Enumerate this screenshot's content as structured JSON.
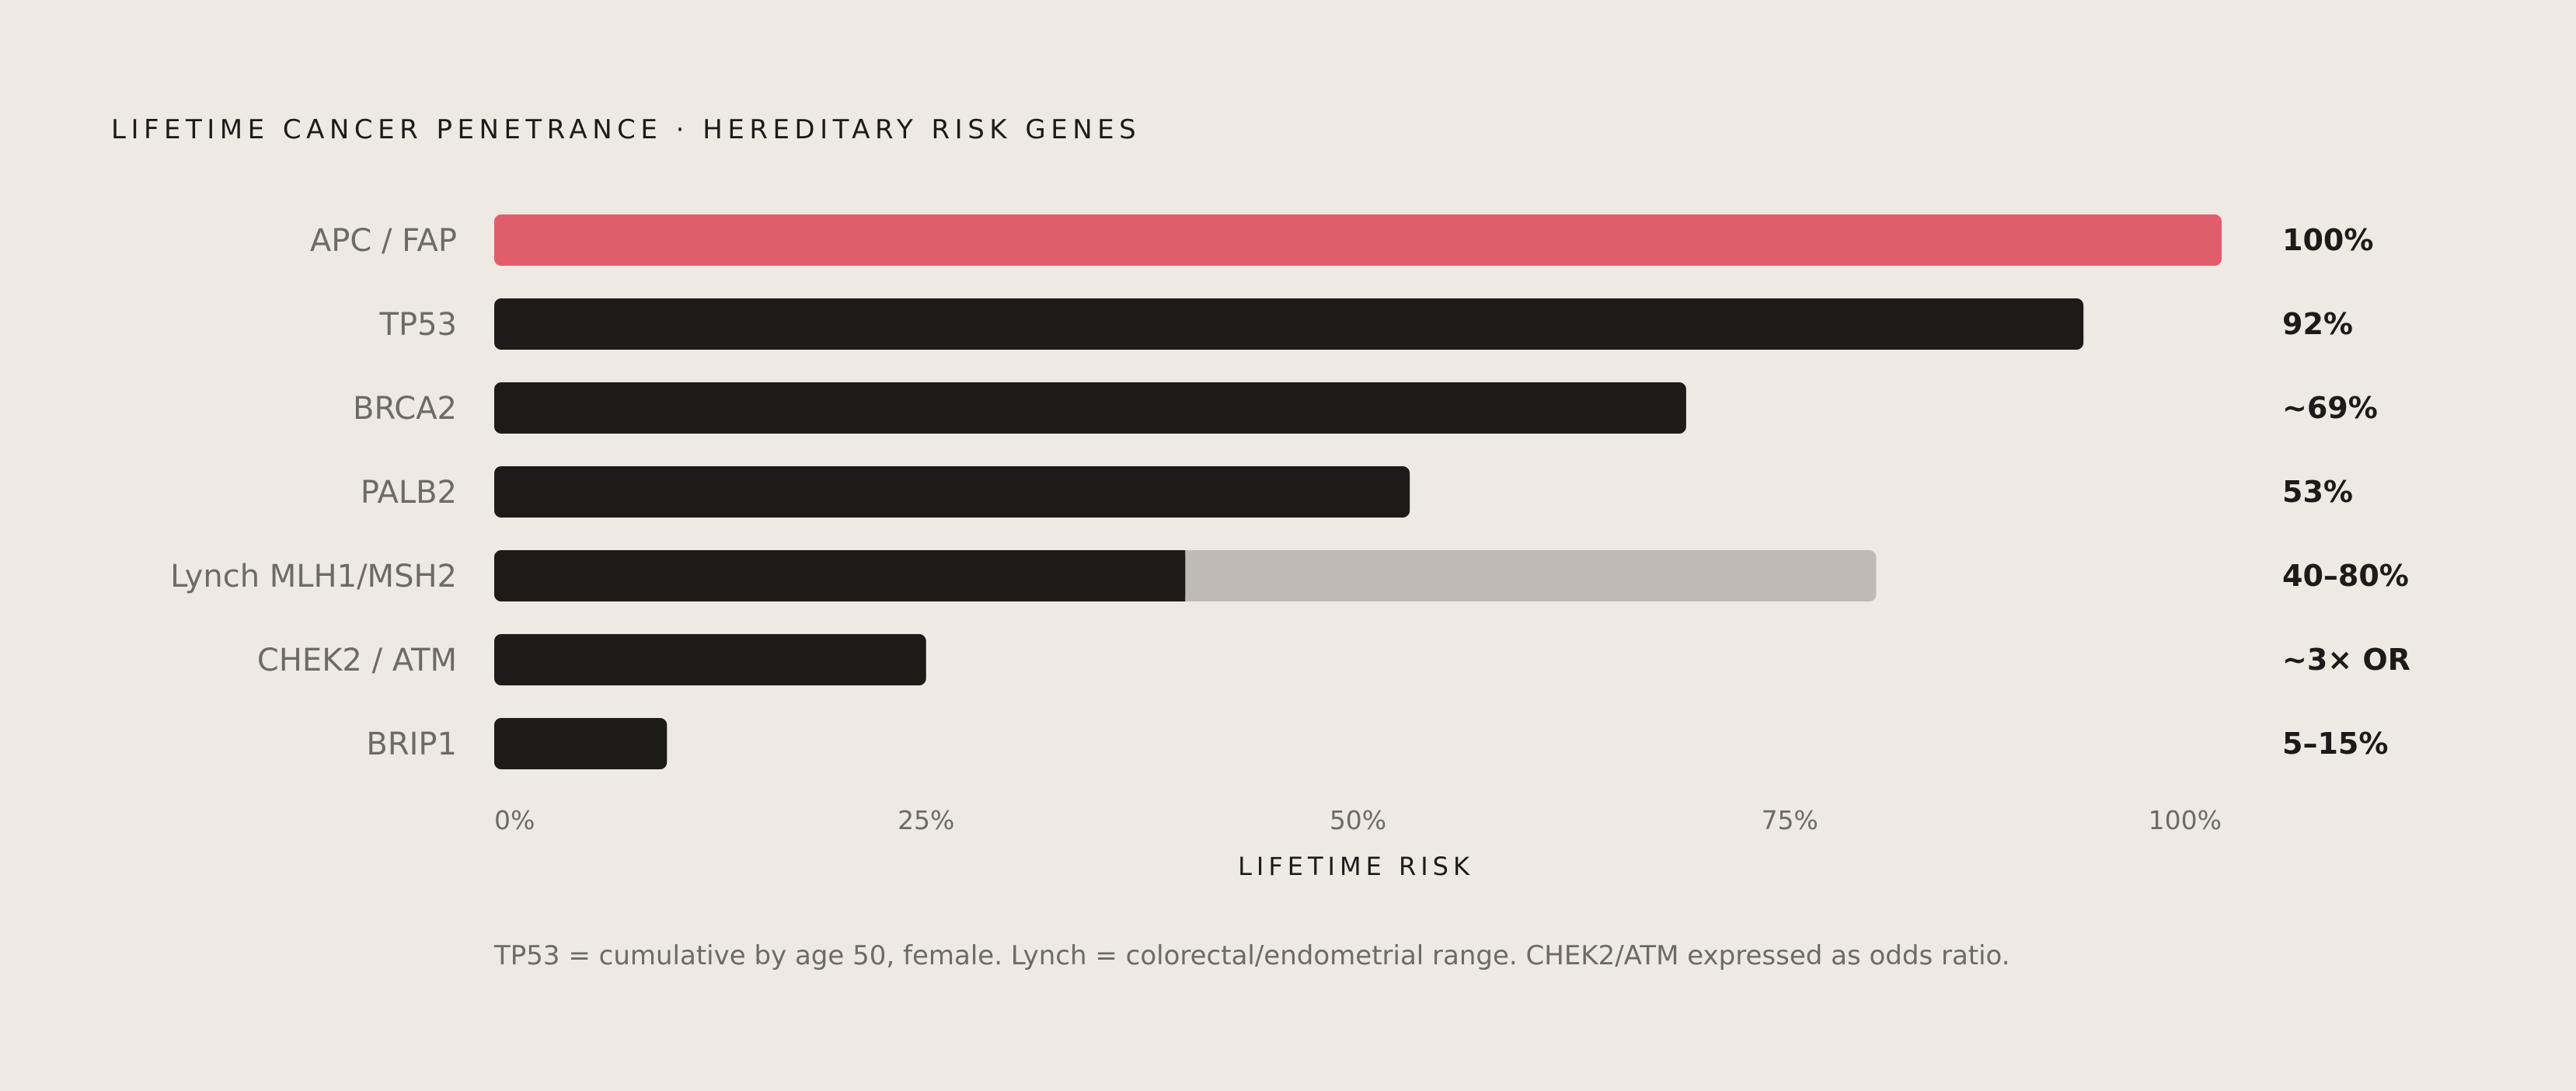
{
  "colors": {
    "background": "#EEE9E3",
    "highlight": "#E05D6B",
    "bar": "#1C1B19",
    "range": "#BFBAB3",
    "label": "#6E6A66"
  },
  "chart_data": {
    "type": "bar",
    "orientation": "horizontal",
    "title": "LIFETIME CANCER PENETRANCE · HEREDITARY RISK GENES",
    "xlabel": "LIFETIME RISK",
    "ylabel": "",
    "xlim": [
      0,
      100
    ],
    "x_ticks": [
      "0%",
      "25%",
      "50%",
      "75%",
      "100%"
    ],
    "x_tick_values": [
      0,
      25,
      50,
      75,
      100
    ],
    "grid": false,
    "categories": [
      "APC / FAP",
      "TP53",
      "BRCA2",
      "PALB2",
      "Lynch MLH1/MSH2",
      "CHEK2 / ATM",
      "BRIP1"
    ],
    "values": [
      100,
      92,
      69,
      53,
      40,
      25,
      10
    ],
    "range_high": [
      null,
      null,
      null,
      null,
      80,
      null,
      null
    ],
    "highlighted": [
      true,
      false,
      false,
      false,
      false,
      false,
      false
    ],
    "value_labels": [
      "100%",
      "92%",
      "~69%",
      "53%",
      "40–80%",
      "~3× OR",
      "5–15%"
    ],
    "footnote": "TP53 = cumulative by age 50, female. Lynch = colorectal/endometrial range. CHEK2/ATM expressed as odds ratio."
  }
}
